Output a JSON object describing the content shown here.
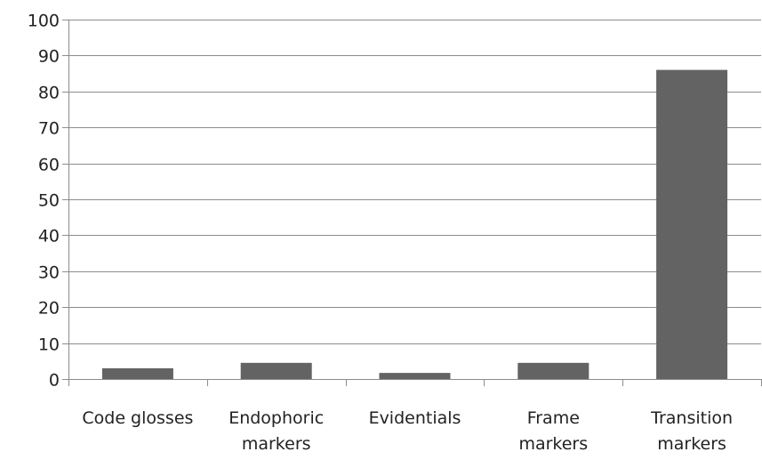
{
  "chart_data": {
    "type": "bar",
    "title": "",
    "xlabel": "",
    "ylabel": "",
    "categories": [
      [
        "Code glosses"
      ],
      [
        "Endophoric",
        "markers"
      ],
      [
        "Evidentials"
      ],
      [
        "Frame",
        "markers"
      ],
      [
        "Transition",
        "markers"
      ]
    ],
    "values": [
      3,
      4.5,
      1.7,
      4.5,
      86
    ],
    "ylim": [
      0,
      100
    ],
    "yticks": [
      0,
      10,
      20,
      30,
      40,
      50,
      60,
      70,
      80,
      90,
      100
    ],
    "grid": true,
    "legend": "none",
    "bar_color": "#636363",
    "grid_color": "#8c8c8c",
    "axis_color": "#8c8c8c"
  }
}
